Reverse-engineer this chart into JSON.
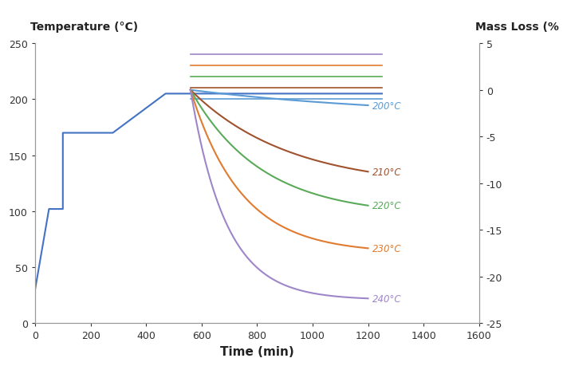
{
  "title_left": "Temperature (°C)",
  "title_right": "Mass Loss (%",
  "xlabel": "Time (min)",
  "xlim": [
    0,
    1600
  ],
  "ylim_left": [
    0,
    250
  ],
  "ylim_right": [
    -25,
    5
  ],
  "xticks": [
    0,
    200,
    400,
    600,
    800,
    1000,
    1200,
    1400,
    1600
  ],
  "yticks_left": [
    0,
    50,
    100,
    150,
    200,
    250
  ],
  "yticks_right": [
    5,
    0,
    -5,
    -10,
    -15,
    -20,
    -25
  ],
  "temp_profile": {
    "x": [
      0,
      50,
      50,
      100,
      100,
      280,
      280,
      470,
      470,
      560,
      560,
      1250
    ],
    "y": [
      30,
      102,
      102,
      102,
      170,
      170,
      170,
      205,
      205,
      205,
      205,
      205
    ],
    "color": "#4472c4",
    "linewidth": 1.5
  },
  "treatments": [
    {
      "label": "200°C",
      "color": "#5b9bd5",
      "temp_C": 200,
      "final_ml": -3.0,
      "decay_k": 0.8,
      "start_time": 560,
      "end_time": 1200,
      "flat_temp": 200
    },
    {
      "label": "210°C",
      "color": "#a0522d",
      "temp_C": 210,
      "final_ml": -10.5,
      "decay_k": 1.8,
      "start_time": 560,
      "end_time": 1200,
      "flat_temp": 210
    },
    {
      "label": "220°C",
      "color": "#5aaa5a",
      "temp_C": 220,
      "final_ml": -13.5,
      "decay_k": 2.5,
      "start_time": 560,
      "end_time": 1200,
      "flat_temp": 220
    },
    {
      "label": "230°C",
      "color": "#e07b30",
      "temp_C": 230,
      "final_ml": -17.5,
      "decay_k": 3.5,
      "start_time": 560,
      "end_time": 1200,
      "flat_temp": 230
    },
    {
      "label": "240°C",
      "color": "#9e86c8",
      "temp_C": 240,
      "final_ml": -22.5,
      "decay_k": 5.0,
      "start_time": 560,
      "end_time": 1200,
      "flat_temp": 240
    }
  ],
  "background_color": "#ffffff",
  "spine_color": "#999999",
  "tick_color": "#999999"
}
